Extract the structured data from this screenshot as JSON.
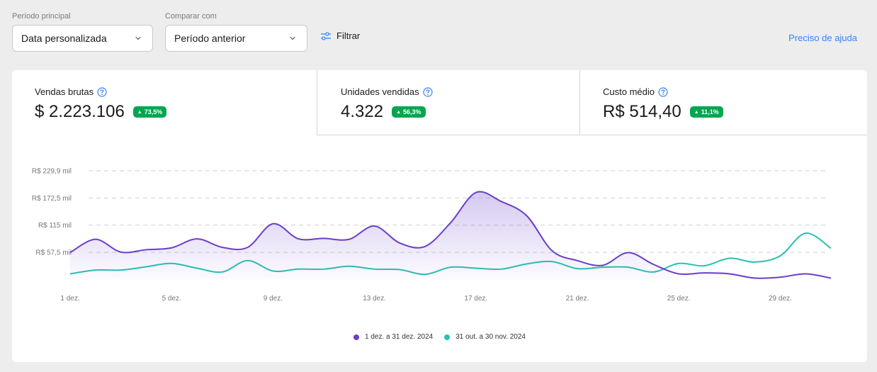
{
  "filters": {
    "primary_label": "Período principal",
    "primary_value": "Data personalizada",
    "compare_label": "Comparar com",
    "compare_value": "Período anterior",
    "filter_button": "Filtrar",
    "help_link": "Preciso de ajuda"
  },
  "metrics": [
    {
      "label": "Vendas brutas",
      "value": "$ 2.223.106",
      "change": "73,5%"
    },
    {
      "label": "Unidades vendidas",
      "value": "4.322",
      "change": "56,3%"
    },
    {
      "label": "Custo médio",
      "value": "R$ 514,40",
      "change": "11,1%"
    }
  ],
  "colors": {
    "accent": "#3483fa",
    "positive": "#00a650",
    "series_primary": "#6a3fc8",
    "series_compare": "#26c2b0"
  },
  "chart_data": {
    "type": "line",
    "y_tick_labels": [
      "R$ 57,5 mil",
      "R$ 115 mil",
      "R$ 172,5 mil",
      "R$ 229,9 mil"
    ],
    "y_ticks": [
      57500,
      115000,
      172500,
      229900
    ],
    "ylim": [
      0,
      229900
    ],
    "x_tick_labels": [
      "1 dez.",
      "5 dez.",
      "9 dez.",
      "13 dez.",
      "17 dez.",
      "21 dez.",
      "25 dez.",
      "29 dez."
    ],
    "x_tick_days": [
      1,
      5,
      9,
      13,
      17,
      21,
      25,
      29
    ],
    "x_days": [
      1,
      2,
      3,
      4,
      5,
      6,
      7,
      8,
      9,
      10,
      11,
      12,
      13,
      14,
      15,
      16,
      17,
      18,
      19,
      20,
      21,
      22,
      23,
      24,
      25,
      26,
      27,
      28,
      29,
      30,
      31
    ],
    "grid": true,
    "legend_position": "bottom",
    "series": [
      {
        "name": "1 dez. a 31 dez. 2024",
        "color": "#6a3fc8",
        "filled": true,
        "values": [
          57000,
          85000,
          58000,
          63000,
          67000,
          86000,
          68000,
          68000,
          118000,
          86000,
          87000,
          85000,
          113000,
          77000,
          70000,
          120000,
          184000,
          165000,
          135000,
          61000,
          40000,
          30000,
          57000,
          32000,
          12000,
          14000,
          12000,
          3000,
          5000,
          12000,
          3000
        ]
      },
      {
        "name": "31 out. a 30 nov. 2024",
        "color": "#26c2b0",
        "filled": false,
        "values": [
          12000,
          20000,
          20000,
          27000,
          34000,
          24000,
          16000,
          40000,
          18000,
          22000,
          22000,
          28000,
          22000,
          21000,
          11000,
          26000,
          24000,
          22000,
          33000,
          38000,
          23000,
          26000,
          26000,
          16000,
          34000,
          29000,
          45000,
          37000,
          50000,
          98000,
          66000
        ]
      }
    ]
  }
}
